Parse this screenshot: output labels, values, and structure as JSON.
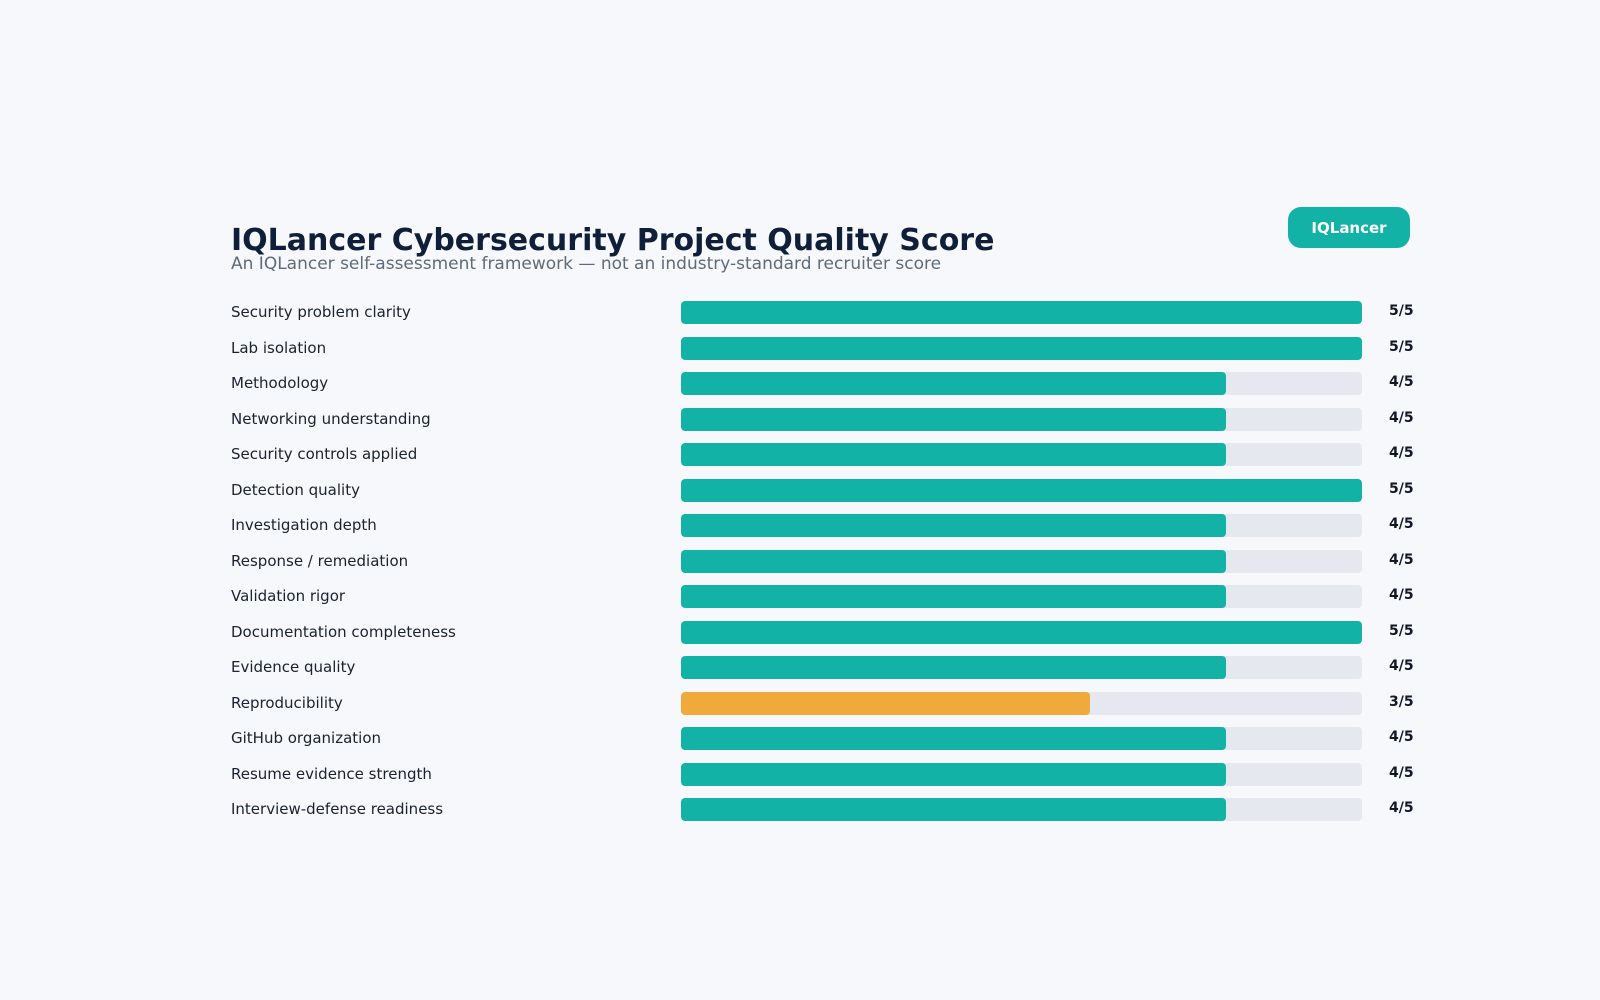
{
  "badge": {
    "label": "IQLancer"
  },
  "colors": {
    "background": "#f6f8fb",
    "accent": "#12b3a6",
    "warning": "#f0a93b",
    "track": "#e5e8ee"
  },
  "chart_data": {
    "type": "bar",
    "orientation": "horizontal",
    "title": "IQLancer Cybersecurity Project Quality Score",
    "subtitle": "An IQLancer self-assessment framework — not an industry-standard recruiter score",
    "xlim": [
      0,
      5
    ],
    "grid": false,
    "categories": [
      "Security problem clarity",
      "Lab isolation",
      "Methodology",
      "Networking understanding",
      "Security controls applied",
      "Detection quality",
      "Investigation depth",
      "Response / remediation",
      "Validation rigor",
      "Documentation completeness",
      "Evidence quality",
      "Reproducibility",
      "GitHub organization",
      "Resume evidence strength",
      "Interview-defense readiness"
    ],
    "values": [
      5,
      5,
      4,
      4,
      4,
      5,
      4,
      4,
      4,
      5,
      4,
      3,
      4,
      4,
      4
    ],
    "value_labels": [
      "5/5",
      "5/5",
      "4/5",
      "4/5",
      "4/5",
      "5/5",
      "4/5",
      "4/5",
      "4/5",
      "5/5",
      "4/5",
      "3/5",
      "4/5",
      "4/5",
      "4/5"
    ],
    "max": 5
  }
}
